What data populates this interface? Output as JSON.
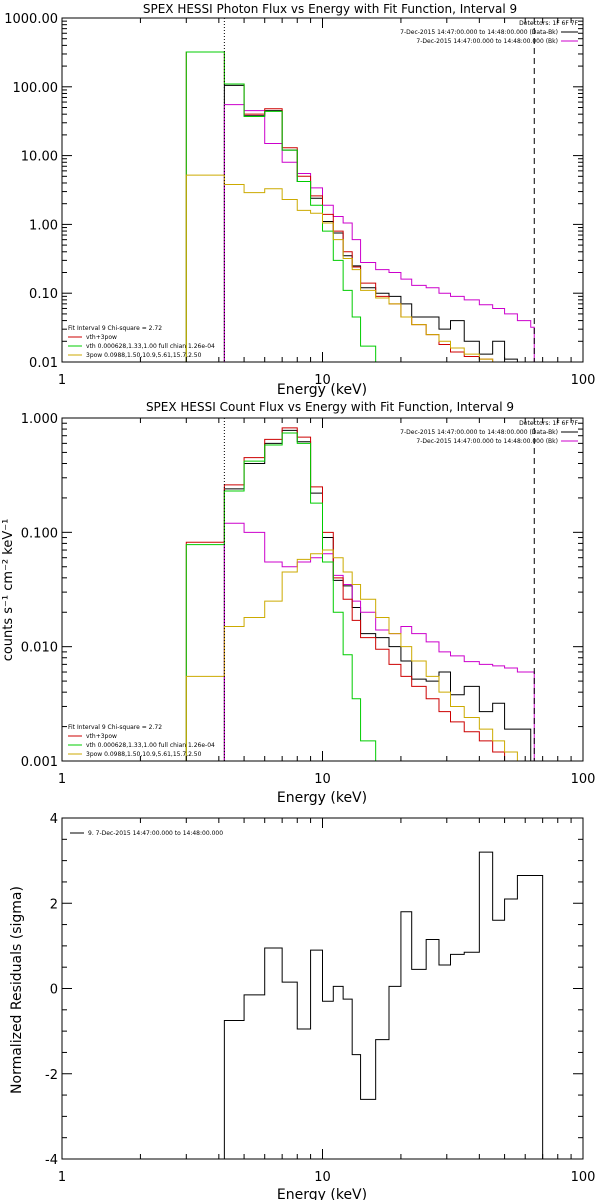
{
  "chart_data": [
    {
      "type": "line",
      "title": "SPEX HESSI Photon Flux vs Energy with Fit Function, Interval 9",
      "xlabel": "Energy (keV)",
      "ylabel": "",
      "xscale": "log",
      "yscale": "log",
      "xlim": [
        1,
        100
      ],
      "ylim": [
        0.01,
        1000
      ],
      "x_ticks": [
        "1",
        "10",
        "100"
      ],
      "y_ticks": [
        "0.01",
        "0.10",
        "1.00",
        "10.00",
        "100.00",
        "1000.00"
      ],
      "vlines": [
        {
          "x": 4.2,
          "style": "dotted"
        },
        {
          "x": 65,
          "style": "dashed"
        }
      ],
      "legend_top": [
        "Detectors: 1F 6F 7F",
        "7-Dec-2015 14:47:00.000 to 14:48:00.000 (Data-Bk)",
        "7-Dec-2015 14:47:00.000 to 14:48:00.000 (Bk)"
      ],
      "legend_bottom": [
        "Fit Interval 9   Chi-square = 2.72",
        "vth+3pow",
        "vth 0.000628,1.33,1.00  full chian 1.26e-04",
        "3pow 0.0988,1.50,10.9,5.61,15.7,2.50"
      ],
      "edges": [
        3,
        4.2,
        5,
        6,
        7,
        8,
        9,
        10,
        11,
        12,
        13,
        14,
        16,
        18,
        20,
        22,
        25,
        28,
        31,
        35,
        40,
        45,
        50,
        56,
        63,
        65
      ],
      "series": [
        {
          "name": "7-Dec-2015 14:47:00.000 to 14:48:00.000 (Data-Bk)",
          "color": "#000000",
          "values": [
            null,
            105,
            38,
            45,
            12,
            4.2,
            2.4,
            1.1,
            0.75,
            0.35,
            0.25,
            0.12,
            0.1,
            0.09,
            0.07,
            0.045,
            0.045,
            0.03,
            0.04,
            0.02,
            0.013,
            0.02,
            0.011,
            0.01,
            null
          ]
        },
        {
          "name": "7-Dec-2015 14:47:00.000 to 14:48:00.000 (Bk)",
          "color": "#cc00cc",
          "values": [
            null,
            55,
            45,
            15,
            8,
            5.5,
            3.4,
            1.9,
            1.3,
            1.05,
            0.6,
            0.28,
            0.22,
            0.2,
            0.16,
            0.13,
            0.12,
            0.1,
            0.09,
            0.08,
            0.068,
            0.06,
            0.05,
            0.04,
            0.032
          ]
        },
        {
          "name": "vth+3pow",
          "color": "#cc0000",
          "values": [
            320,
            110,
            40,
            48,
            13,
            5,
            2.6,
            1.4,
            0.8,
            0.4,
            0.24,
            0.14,
            0.09,
            0.07,
            0.045,
            0.035,
            0.025,
            0.018,
            0.014,
            0.012,
            0.011,
            0.01,
            null,
            null,
            null
          ]
        },
        {
          "name": "vth 0.000628,1.33,1.00  full chian 1.26e-04",
          "color": "#00cc00",
          "values": [
            320,
            110,
            37,
            44,
            12,
            4.2,
            1.9,
            0.8,
            0.3,
            0.11,
            0.045,
            0.017,
            null,
            null,
            null,
            null,
            null,
            null,
            null,
            null,
            null,
            null,
            null,
            null,
            null
          ]
        },
        {
          "name": "3pow 0.0988,1.50,10.9,5.61,15.7,2.50",
          "color": "#ccaa00",
          "values": [
            5.2,
            3.8,
            2.9,
            3.3,
            2.3,
            1.6,
            1.45,
            1.05,
            0.6,
            0.32,
            0.22,
            0.11,
            0.085,
            0.07,
            0.045,
            0.035,
            0.025,
            0.02,
            0.016,
            0.013,
            0.011,
            0.01,
            null,
            null,
            null
          ]
        }
      ]
    },
    {
      "type": "line",
      "title": "SPEX HESSI Count Flux vs Energy with Fit Function, Interval 9",
      "xlabel": "Energy (keV)",
      "ylabel": "counts s⁻¹ cm⁻² keV⁻¹",
      "xscale": "log",
      "yscale": "log",
      "xlim": [
        1,
        100
      ],
      "ylim": [
        0.001,
        1
      ],
      "x_ticks": [
        "1",
        "10",
        "100"
      ],
      "y_ticks": [
        "0.001",
        "0.010",
        "0.100",
        "1.000"
      ],
      "vlines": [
        {
          "x": 4.2,
          "style": "dotted"
        },
        {
          "x": 65,
          "style": "dashed"
        }
      ],
      "legend_top": [
        "Detectors: 1F 6F 7F",
        "7-Dec-2015 14:47:00.000 to 14:48:00.000 (Data-Bk)",
        "7-Dec-2015 14:47:00.000 to 14:48:00.000 (Bk)"
      ],
      "legend_bottom": [
        "Fit Interval 9   Chi-square = 2.72",
        "vth+3pow",
        "vth 0.000628,1.33,1.00  full chian 1.26e-04",
        "3pow 0.0988,1.50,10.9,5.61,15.7,2.50"
      ],
      "edges": [
        3,
        4.2,
        5,
        6,
        7,
        8,
        9,
        10,
        11,
        12,
        13,
        14,
        16,
        18,
        20,
        22,
        25,
        28,
        31,
        35,
        40,
        45,
        50,
        56,
        63,
        65
      ],
      "series": [
        {
          "name": "7-Dec-2015 14:47:00.000 to 14:48:00.000 (Data-Bk)",
          "color": "#000000",
          "values": [
            null,
            0.24,
            0.4,
            0.6,
            0.78,
            0.62,
            0.22,
            0.09,
            0.038,
            0.034,
            0.022,
            0.013,
            0.012,
            0.01,
            0.0075,
            0.0052,
            0.005,
            0.006,
            0.0038,
            0.0045,
            0.0027,
            0.0032,
            0.0019,
            0.0019,
            null
          ]
        },
        {
          "name": "7-Dec-2015 14:47:00.000 to 14:48:00.000 (Bk)",
          "color": "#cc00cc",
          "values": [
            null,
            0.12,
            0.1,
            0.055,
            0.05,
            0.055,
            0.06,
            0.065,
            0.042,
            0.035,
            0.025,
            0.02,
            0.014,
            0.013,
            0.015,
            0.013,
            0.011,
            0.009,
            0.0083,
            0.0074,
            0.007,
            0.0068,
            0.0065,
            0.006,
            0.006
          ]
        },
        {
          "name": "vth+3pow",
          "color": "#cc0000",
          "values": [
            0.082,
            0.26,
            0.45,
            0.65,
            0.82,
            0.68,
            0.25,
            0.1,
            0.04,
            0.026,
            0.017,
            0.012,
            0.0095,
            0.007,
            0.0055,
            0.0045,
            0.0035,
            0.0027,
            0.0022,
            0.0018,
            0.0015,
            0.0012,
            0.001,
            null,
            null
          ]
        },
        {
          "name": "vth 0.000628,1.33,1.00  full chian 1.26e-04",
          "color": "#00cc00",
          "values": [
            0.078,
            0.23,
            0.42,
            0.58,
            0.74,
            0.6,
            0.18,
            0.055,
            0.02,
            0.0085,
            0.0035,
            0.0015,
            0.001,
            null,
            null,
            null,
            null,
            null,
            null,
            null,
            null,
            null,
            null,
            null,
            null
          ]
        },
        {
          "name": "3pow 0.0988,1.50,10.9,5.61,15.7,2.50",
          "color": "#ccaa00",
          "values": [
            0.0055,
            0.015,
            0.018,
            0.025,
            0.045,
            0.058,
            0.065,
            0.07,
            0.06,
            0.045,
            0.035,
            0.026,
            0.018,
            0.013,
            0.01,
            0.0075,
            0.0055,
            0.004,
            0.003,
            0.0024,
            0.0019,
            0.0015,
            0.0012,
            0.001,
            null
          ]
        }
      ]
    },
    {
      "type": "line",
      "title": "",
      "xlabel": "Energy (keV)",
      "ylabel": "Normalized Residuals (sigma)",
      "xscale": "log",
      "yscale": "linear",
      "xlim": [
        1,
        100
      ],
      "ylim": [
        -4,
        4
      ],
      "x_ticks": [
        "1",
        "10",
        "100"
      ],
      "y_ticks": [
        "-4",
        "-2",
        "0",
        "2",
        "4"
      ],
      "legend": [
        "9.  7-Dec-2015 14:47:00.000 to 14:48:00.000"
      ],
      "edges": [
        4.2,
        5,
        6,
        7,
        8,
        9,
        10,
        11,
        12,
        13,
        14,
        16,
        18,
        20,
        22,
        25,
        28,
        31,
        35,
        40,
        45,
        50,
        56,
        63,
        70
      ],
      "series": [
        {
          "name": "9.  7-Dec-2015 14:47:00.000 to 14:48:00.000",
          "color": "#000000",
          "values": [
            -0.75,
            -0.15,
            0.95,
            0.15,
            -0.95,
            0.9,
            -0.3,
            0.05,
            -0.25,
            -1.55,
            -2.6,
            -1.2,
            0.05,
            1.8,
            0.45,
            1.15,
            0.55,
            0.8,
            0.85,
            3.2,
            1.6,
            2.1,
            2.65,
            2.65
          ]
        }
      ]
    }
  ]
}
